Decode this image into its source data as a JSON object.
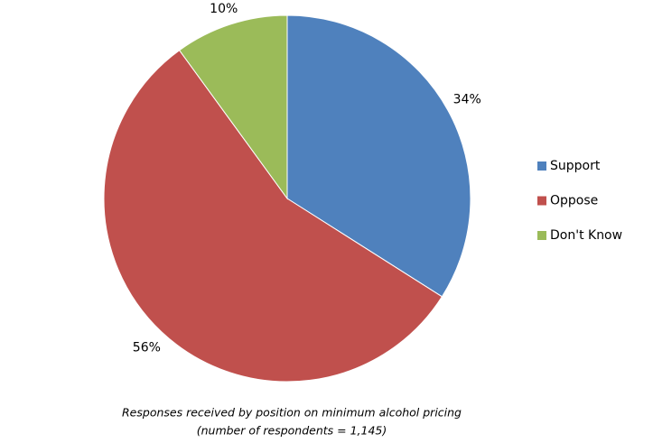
{
  "chart_data": {
    "type": "pie",
    "categories": [
      "Support",
      "Oppose",
      "Don't Know"
    ],
    "values": [
      34,
      56,
      10
    ],
    "value_labels": [
      "34%",
      "56%",
      "10%"
    ],
    "colors": [
      "#4f81bd",
      "#c0504d",
      "#9bbb59"
    ],
    "legend": "right",
    "caption": [
      "Responses received by position on minimum alcohol pricing",
      "(number of respondents = 1,145)"
    ]
  }
}
